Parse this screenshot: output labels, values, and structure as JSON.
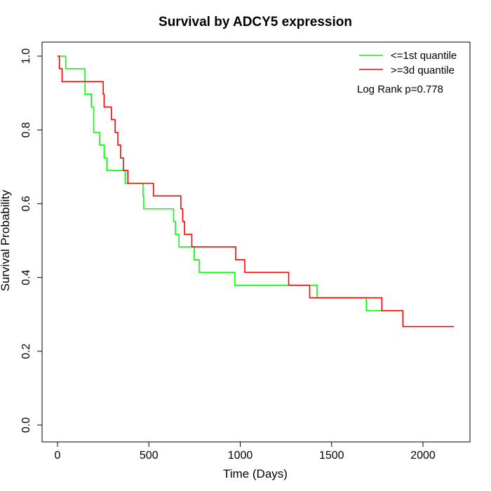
{
  "chart_data": {
    "type": "line",
    "title": "Survival by ADCY5 expression",
    "xlabel": "Time (Days)",
    "ylabel": "Survival Probability",
    "xlim": [
      0,
      2180
    ],
    "ylim": [
      0,
      1
    ],
    "x_ticks": [
      0,
      500,
      1000,
      1500,
      2000
    ],
    "x_tick_labels": [
      "0",
      "500",
      "1000",
      "1500",
      "2000"
    ],
    "y_ticks": [
      0,
      0.2,
      0.4,
      0.6,
      0.8,
      1.0
    ],
    "y_tick_labels": [
      "0.0",
      "0.2",
      "0.4",
      "0.6",
      "0.8",
      "1.0"
    ],
    "grid": false,
    "legend_position": "top-right",
    "annotation": "Log Rank p=0.778",
    "series": [
      {
        "name": "<=1st quantile",
        "color": "#00ff00",
        "step": true,
        "points": [
          [
            0,
            1.0
          ],
          [
            45,
            0.966
          ],
          [
            150,
            0.897
          ],
          [
            185,
            0.862
          ],
          [
            198,
            0.793
          ],
          [
            230,
            0.759
          ],
          [
            255,
            0.724
          ],
          [
            270,
            0.69
          ],
          [
            370,
            0.655
          ],
          [
            468,
            0.621
          ],
          [
            472,
            0.586
          ],
          [
            635,
            0.552
          ],
          [
            645,
            0.517
          ],
          [
            665,
            0.483
          ],
          [
            748,
            0.448
          ],
          [
            775,
            0.414
          ],
          [
            970,
            0.379
          ],
          [
            1260,
            0.379
          ],
          [
            1420,
            0.345
          ],
          [
            1690,
            0.31
          ],
          [
            1775,
            0.31
          ]
        ]
      },
      {
        "name": ">=3d quantile",
        "color": "#ff0000",
        "step": true,
        "points": [
          [
            0,
            1.0
          ],
          [
            10,
            0.966
          ],
          [
            25,
            0.931
          ],
          [
            250,
            0.897
          ],
          [
            255,
            0.862
          ],
          [
            295,
            0.828
          ],
          [
            315,
            0.793
          ],
          [
            330,
            0.759
          ],
          [
            345,
            0.724
          ],
          [
            360,
            0.69
          ],
          [
            385,
            0.655
          ],
          [
            525,
            0.621
          ],
          [
            675,
            0.586
          ],
          [
            685,
            0.552
          ],
          [
            695,
            0.517
          ],
          [
            735,
            0.483
          ],
          [
            975,
            0.448
          ],
          [
            1025,
            0.414
          ],
          [
            1265,
            0.379
          ],
          [
            1380,
            0.345
          ],
          [
            1775,
            0.31
          ],
          [
            1890,
            0.267
          ],
          [
            2170,
            0.267
          ]
        ]
      }
    ]
  }
}
